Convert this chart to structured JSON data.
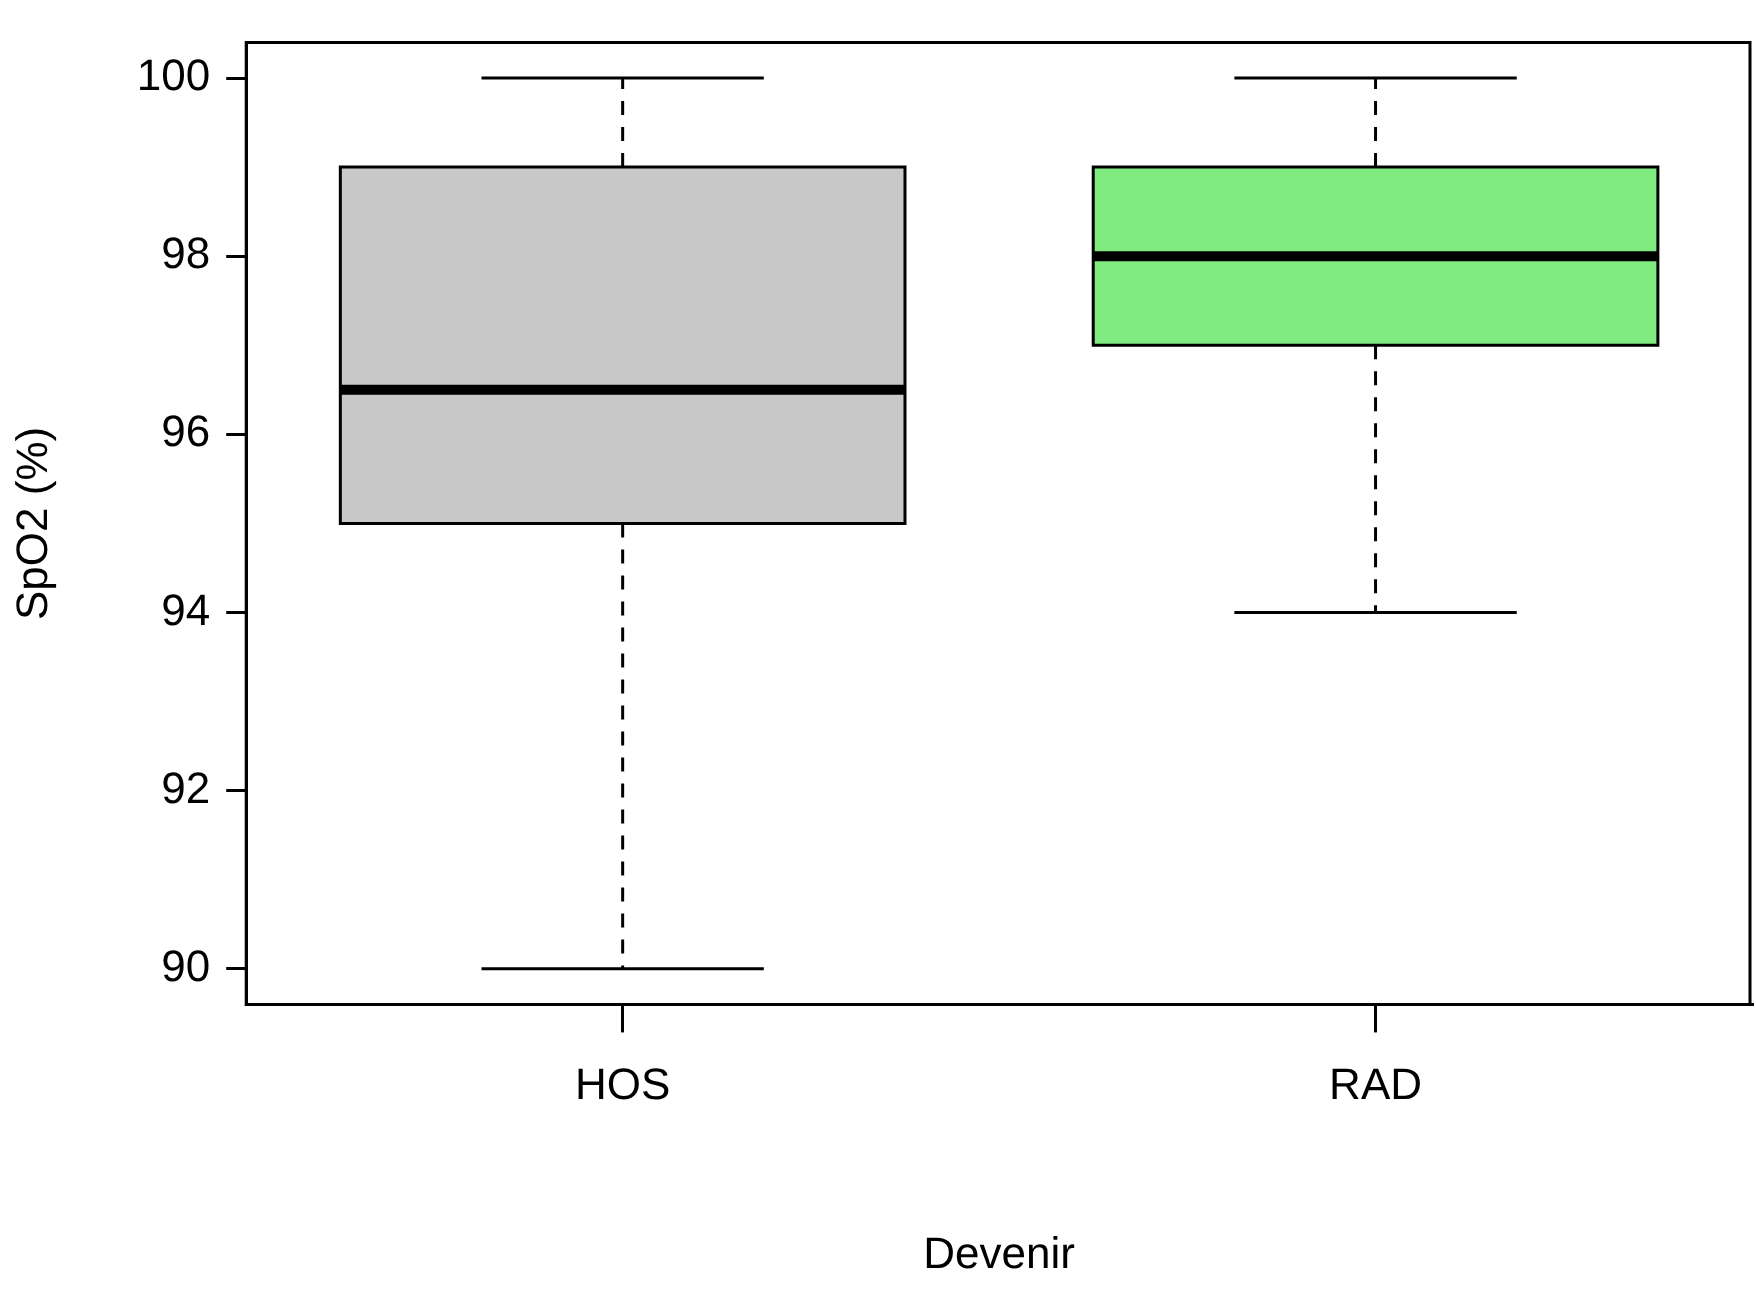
{
  "chart_data": {
    "type": "box",
    "xlabel": "Devenir",
    "ylabel": "SpO2 (%)",
    "categories": [
      "HOS",
      "RAD"
    ],
    "boxes": [
      {
        "low": 90,
        "q1": 95,
        "median": 96.5,
        "q3": 99,
        "high": 100
      },
      {
        "low": 94,
        "q1": 97,
        "median": 98,
        "q3": 99,
        "high": 100
      }
    ],
    "colors": [
      "#c8c8c8",
      "#80eb80"
    ],
    "ylim": [
      89.6,
      100.4
    ],
    "yticks": [
      90,
      92,
      94,
      96,
      98,
      100
    ],
    "grid": false,
    "legend": false
  }
}
